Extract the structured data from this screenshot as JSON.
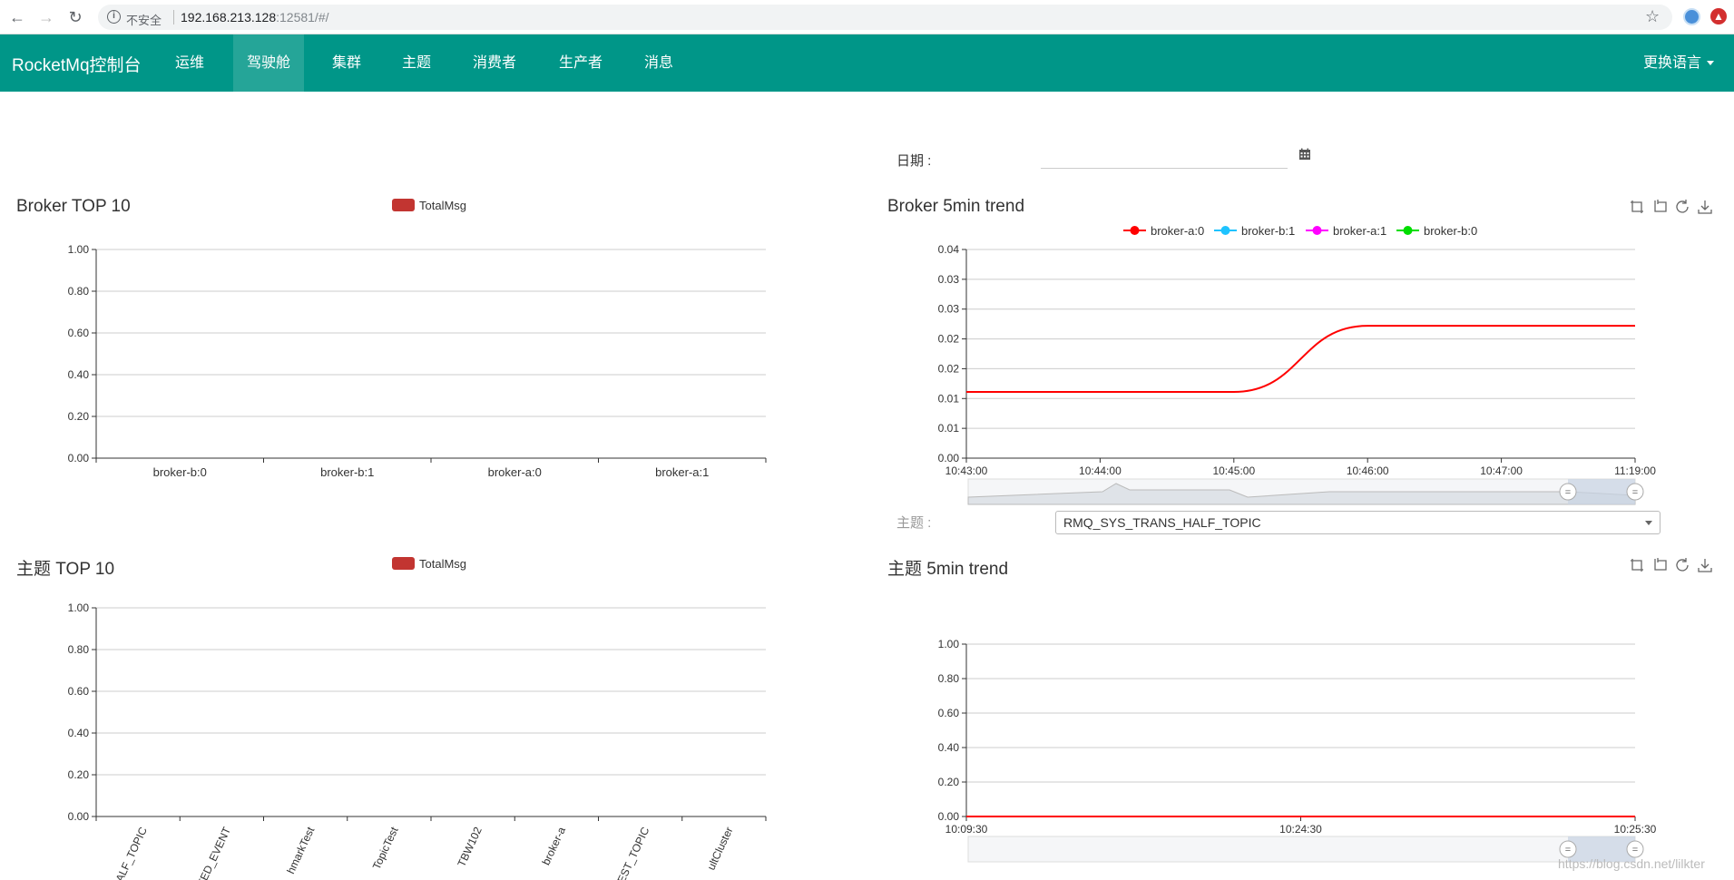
{
  "browser": {
    "insecure_label": "不安全",
    "url_host": "192.168.213.128",
    "url_path": ":12581/#/"
  },
  "navbar": {
    "brand": "RocketMq控制台",
    "items": [
      "运维",
      "驾驶舱",
      "集群",
      "主题",
      "消费者",
      "生产者",
      "消息"
    ],
    "active_index": 1,
    "language_menu": "更换语言",
    "color": "#009688"
  },
  "filters": {
    "date_label": "日期 :",
    "date_value": "",
    "topic_label": "主题 :",
    "topic_selected": "RMQ_SYS_TRANS_HALF_TOPIC"
  },
  "panels": {
    "broker_top10": {
      "title": "Broker TOP 10",
      "legend": "TotalMsg"
    },
    "broker_trend": {
      "title": "Broker 5min trend",
      "legend": [
        "broker-a:0",
        "broker-b:1",
        "broker-a:1",
        "broker-b:0"
      ]
    },
    "topic_top10": {
      "title": "主题 TOP 10",
      "legend": "TotalMsg"
    },
    "topic_trend": {
      "title": "主题 5min trend"
    }
  },
  "chart_data": [
    {
      "type": "bar",
      "title": "Broker TOP 10",
      "categories": [
        "broker-b:0",
        "broker-b:1",
        "broker-a:0",
        "broker-a:1"
      ],
      "series": [
        {
          "name": "TotalMsg",
          "values": [
            0,
            0,
            0,
            0
          ],
          "color": "#c23531"
        }
      ],
      "y_ticks": [
        "0.00",
        "0.20",
        "0.40",
        "0.60",
        "0.80",
        "1.00"
      ],
      "ylim": [
        0,
        1
      ],
      "grid": true
    },
    {
      "type": "line",
      "title": "Broker 5min trend",
      "x_ticks": [
        "10:43:00",
        "10:44:00",
        "10:45:00",
        "10:46:00",
        "10:47:00",
        "11:19:00"
      ],
      "y_ticks": [
        "0.00",
        "0.01",
        "0.01",
        "0.02",
        "0.02",
        "0.03",
        "0.03",
        "0.04"
      ],
      "ylim": [
        0,
        0.035
      ],
      "series": [
        {
          "name": "broker-a:0",
          "color": "#ff0000",
          "points": [
            [
              "10:43:00",
              0.0111
            ],
            [
              "10:45:00",
              0.0111
            ],
            [
              "10:46:00",
              0.0222
            ],
            [
              "11:19:00",
              0.0222
            ]
          ]
        },
        {
          "name": "broker-b:1",
          "color": "#1ec3ff",
          "points": []
        },
        {
          "name": "broker-a:1",
          "color": "#ff00ff",
          "points": []
        },
        {
          "name": "broker-b:0",
          "color": "#00dd00",
          "points": []
        }
      ],
      "legend_position": "top-center",
      "grid": true,
      "data_zoom": true
    },
    {
      "type": "bar",
      "title": "主题 TOP 10",
      "categories": [
        "ALF_TOPIC",
        "FED_EVENT",
        "hmarkTest",
        "TopicTest",
        "TBW102",
        "broker-a",
        "EST_TOPIC",
        "ultCluster"
      ],
      "series": [
        {
          "name": "TotalMsg",
          "values": [
            0,
            0,
            0,
            0,
            0,
            0,
            0,
            0
          ],
          "color": "#c23531"
        }
      ],
      "y_ticks": [
        "0.00",
        "0.20",
        "0.40",
        "0.60",
        "0.80",
        "1.00"
      ],
      "ylim": [
        0,
        1
      ],
      "grid": true
    },
    {
      "type": "line",
      "title": "主题 5min trend",
      "x_ticks": [
        "10:09:30",
        "10:24:30",
        "10:25:30"
      ],
      "y_ticks": [
        "0.00",
        "0.20",
        "0.40",
        "0.60",
        "0.80",
        "1.00"
      ],
      "ylim": [
        0,
        1
      ],
      "series": [
        {
          "color": "#ff0000",
          "points": [
            [
              "10:09:30",
              0
            ],
            [
              "10:25:30",
              0
            ]
          ]
        }
      ],
      "grid": true,
      "data_zoom": true
    }
  ],
  "watermark": "https://blog.csdn.net/lilkter"
}
